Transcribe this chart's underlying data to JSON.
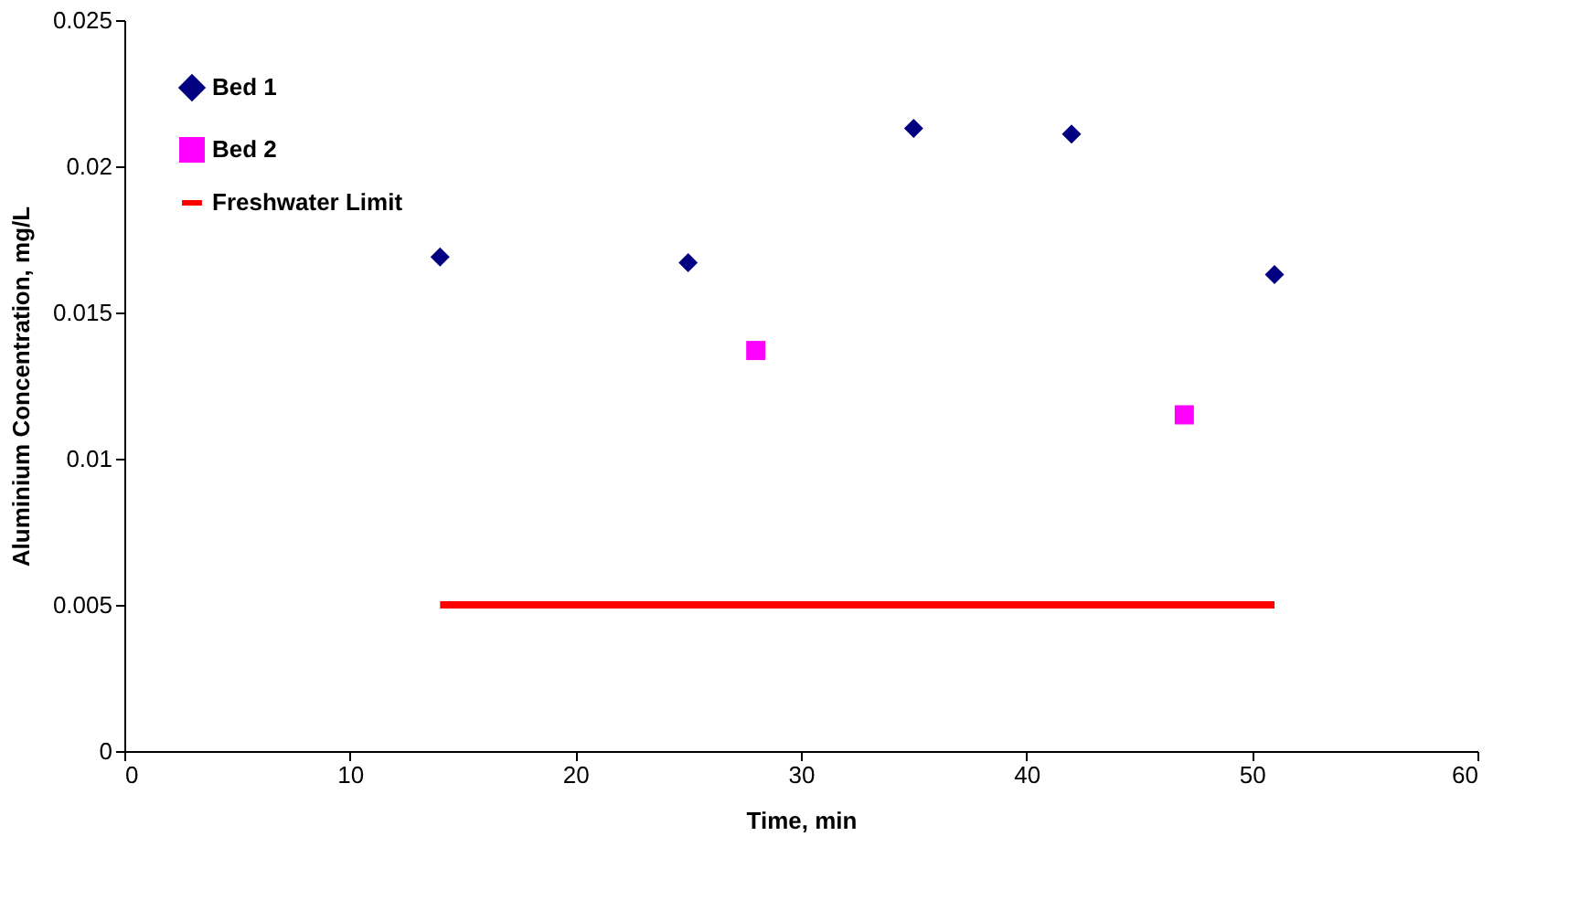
{
  "chart_data": {
    "type": "scatter",
    "xlabel": "Time, min",
    "ylabel": "Aluminium Concentration, mg/L",
    "xlim": [
      0,
      60
    ],
    "xticks": [
      0,
      10,
      20,
      30,
      40,
      50,
      60
    ],
    "ylim": [
      0,
      0.025
    ],
    "yticks": [
      0,
      0.005,
      0.01,
      0.015,
      0.02,
      0.025
    ],
    "grid": false,
    "legend": "top left",
    "series": [
      {
        "name": "Bed 1",
        "color": "#000080",
        "marker": "diamond",
        "x": [
          14,
          25,
          35,
          42,
          51
        ],
        "values": [
          0.0169,
          0.0167,
          0.0213,
          0.0211,
          0.0163
        ]
      },
      {
        "name": "Bed 2",
        "color": "#ff00ff",
        "marker": "square",
        "x": [
          28,
          47
        ],
        "values": [
          0.0137,
          0.0115
        ]
      },
      {
        "name": "Freshwater Limit",
        "type": "line",
        "color": "#ff0000",
        "marker": "none",
        "line_style": "solid",
        "x": [
          14,
          51
        ],
        "values": [
          0.005,
          0.005
        ]
      }
    ]
  }
}
